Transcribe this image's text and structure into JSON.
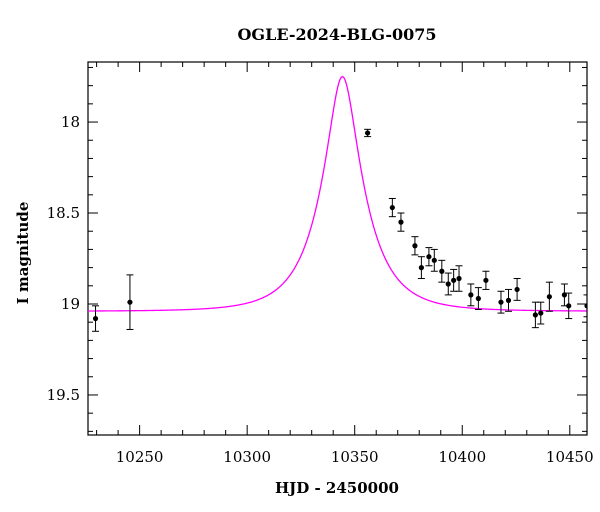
{
  "chart_data": {
    "type": "scatter",
    "title": "OGLE-2024-BLG-0075",
    "xlabel": "HJD - 2450000",
    "ylabel": "I magnitude",
    "xlim": [
      10226,
      10458
    ],
    "ylim": [
      19.72,
      17.67
    ],
    "y_inverted": true,
    "grid": false,
    "x_ticks": [
      10250,
      10300,
      10350,
      10400,
      10450
    ],
    "y_ticks": [
      18,
      18.5,
      19,
      19.5
    ],
    "x_tick_labels": [
      "10250",
      "10300",
      "10350",
      "10400",
      "10450"
    ],
    "y_tick_labels": [
      "18",
      "18.5",
      "19",
      "19.5"
    ],
    "x_minor_step": 10,
    "y_minor_step": 0.1,
    "colors": {
      "model": "#ff00ff",
      "points": "#000000"
    },
    "model": {
      "name": "",
      "t0": 10344.3,
      "baseline_mag": 19.04,
      "peak_mag": 17.75,
      "tE": 19.8
    },
    "series": [
      {
        "name": "",
        "points": [
          {
            "x": 10229.5,
            "y": 19.08,
            "err": 0.07
          },
          {
            "x": 10245.5,
            "y": 18.99,
            "err": 0.15
          },
          {
            "x": 10356.0,
            "y": 18.06,
            "err": 0.02
          },
          {
            "x": 10367.5,
            "y": 18.47,
            "err": 0.05
          },
          {
            "x": 10371.5,
            "y": 18.55,
            "err": 0.05
          },
          {
            "x": 10378.0,
            "y": 18.68,
            "err": 0.05
          },
          {
            "x": 10381.0,
            "y": 18.8,
            "err": 0.06
          },
          {
            "x": 10384.5,
            "y": 18.74,
            "err": 0.05
          },
          {
            "x": 10387.0,
            "y": 18.76,
            "err": 0.06
          },
          {
            "x": 10390.5,
            "y": 18.82,
            "err": 0.06
          },
          {
            "x": 10393.5,
            "y": 18.89,
            "err": 0.06
          },
          {
            "x": 10396.0,
            "y": 18.87,
            "err": 0.06
          },
          {
            "x": 10398.5,
            "y": 18.86,
            "err": 0.07
          },
          {
            "x": 10404.0,
            "y": 18.95,
            "err": 0.06
          },
          {
            "x": 10407.5,
            "y": 18.97,
            "err": 0.06
          },
          {
            "x": 10411.0,
            "y": 18.87,
            "err": 0.05
          },
          {
            "x": 10418.0,
            "y": 18.99,
            "err": 0.06
          },
          {
            "x": 10421.5,
            "y": 18.98,
            "err": 0.06
          },
          {
            "x": 10425.5,
            "y": 18.92,
            "err": 0.06
          },
          {
            "x": 10434.0,
            "y": 19.06,
            "err": 0.07
          },
          {
            "x": 10436.5,
            "y": 19.05,
            "err": 0.06
          },
          {
            "x": 10440.5,
            "y": 18.96,
            "err": 0.08
          },
          {
            "x": 10447.5,
            "y": 18.95,
            "err": 0.06
          },
          {
            "x": 10449.5,
            "y": 19.01,
            "err": 0.07
          },
          {
            "x": 10458.0,
            "y": 19.01,
            "err": 0.06
          }
        ]
      }
    ]
  }
}
